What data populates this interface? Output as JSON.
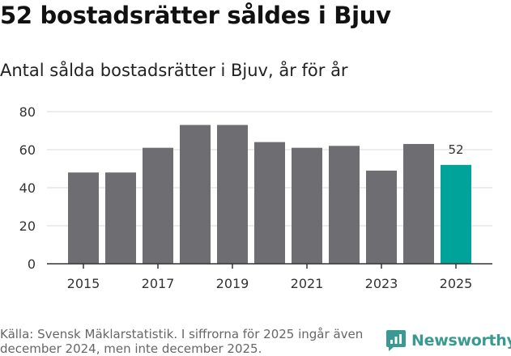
{
  "title": "52 bostadsrätter såldes i Bjuv",
  "subtitle": "Antal sålda bostadsrätter i Bjuv, år för år",
  "source": "Källa: Svensk Mäklarstatistik. I siffrorna för 2025 ingår även december 2024, men inte december 2025.",
  "brand": {
    "name": "Newsworthy",
    "icon": "newsworthy-logo-icon"
  },
  "colors": {
    "bar": "#6e6d71",
    "highlight": "#00a39a",
    "grid": "#d9d9d9",
    "axis": "#333333",
    "brand": "#3a9a91"
  },
  "chart_data": {
    "type": "bar",
    "title": "Antal sålda bostadsrätter i Bjuv, år för år",
    "categories": [
      "2015",
      "2016",
      "2017",
      "2018",
      "2019",
      "2020",
      "2021",
      "2022",
      "2023",
      "2024",
      "2025"
    ],
    "values": [
      48,
      48,
      61,
      73,
      73,
      64,
      61,
      62,
      49,
      63,
      52
    ],
    "highlight_index": 10,
    "data_labels": [
      {
        "index": 10,
        "text": "52"
      }
    ],
    "x_tick_labels": [
      "2015",
      "2017",
      "2019",
      "2021",
      "2023",
      "2025"
    ],
    "y_ticks": [
      0,
      20,
      40,
      60,
      80
    ],
    "ylim": [
      0,
      80
    ],
    "xlabel": "",
    "ylabel": "",
    "grid": true
  }
}
